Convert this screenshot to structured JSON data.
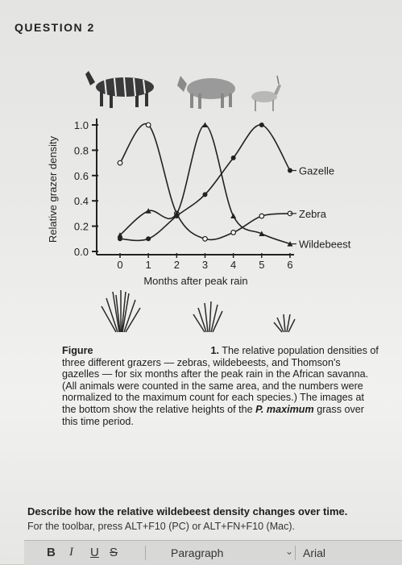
{
  "question_label": "QUESTION 2",
  "chart_data": {
    "type": "line",
    "xlabel": "Months after peak rain",
    "ylabel": "Relative grazer density",
    "x": [
      0,
      1,
      2,
      3,
      4,
      5,
      6
    ],
    "x_ticks": [
      "0",
      "1",
      "2",
      "3",
      "4",
      "5",
      "6"
    ],
    "y_ticks": [
      "0.0",
      "0.2",
      "0.4",
      "0.6",
      "0.8",
      "1.0"
    ],
    "ylim": [
      0,
      1.0
    ],
    "xlim": [
      0,
      6
    ],
    "series": [
      {
        "name": "Gazelle",
        "values": [
          0.1,
          0.1,
          0.28,
          0.45,
          0.74,
          1.0,
          0.64
        ],
        "marker": "filled"
      },
      {
        "name": "Zebra",
        "values": [
          0.7,
          1.0,
          0.3,
          0.1,
          0.15,
          0.28,
          0.3
        ],
        "marker": "open"
      },
      {
        "name": "Wildebeest",
        "values": [
          0.13,
          0.32,
          0.3,
          1.0,
          0.28,
          0.14,
          0.06
        ],
        "marker": "triangle"
      }
    ]
  },
  "caption": {
    "label": "Figure",
    "number": "1.",
    "text_line1": "The relative population",
    "text_rest": "densities of three different grazers — zebras, wildebeests, and Thomson's gazelles — for six months after the peak rain in the African savanna. (All animals were counted in the same area, and the numbers were normalized to the maximum count for each species.) The images at the bottom show the relative heights of the",
    "species": "P. maximum",
    "text_end": "grass over this time period."
  },
  "question_text": "Describe how the relative wildebeest density changes over time.",
  "toolbar_hint": "For the toolbar, press ALT+F10 (PC) or ALT+FN+F10 (Mac).",
  "toolbar": {
    "bold": "B",
    "italic": "I",
    "underline": "U",
    "strike": "S",
    "paragraph": "Paragraph",
    "font": "Arial"
  }
}
